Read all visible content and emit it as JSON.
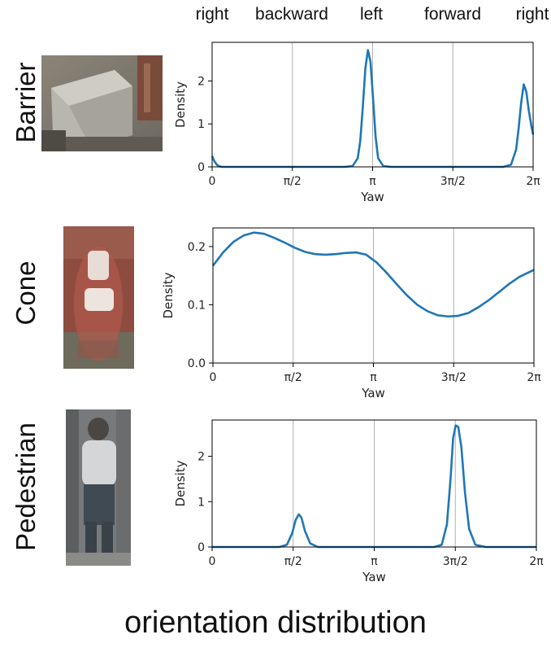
{
  "directions": [
    "right",
    "backward",
    "left",
    "forward",
    "right"
  ],
  "caption": "orientation distribution",
  "colors": {
    "curve": "#1f77b4",
    "grid": "#b0b0b0",
    "axis": "#000000"
  },
  "thumbnails": [
    "barrier-photo",
    "cone-photo",
    "pedestrian-photo"
  ],
  "chart_data": [
    {
      "type": "line",
      "row_label": "Barrier",
      "xlabel": "Yaw",
      "ylabel": "Density",
      "xlim": [
        0,
        6.2832
      ],
      "ylim": [
        0,
        2.9
      ],
      "xticks": [
        0,
        1.5708,
        3.1416,
        4.7124,
        6.2832
      ],
      "xtick_labels": [
        "0",
        "π/2",
        "π",
        "3π/2",
        "2π"
      ],
      "yticks": [
        0,
        1,
        2
      ],
      "ytick_labels": [
        "0",
        "1",
        "2"
      ],
      "grid": "vertical",
      "series": [
        {
          "x": [
            0,
            0.05,
            0.1,
            0.15,
            0.2,
            2.6,
            2.75,
            2.85,
            2.9,
            2.95,
            3.0,
            3.05,
            3.1,
            3.15,
            3.2,
            3.25,
            3.35,
            3.5,
            5.7,
            5.85,
            5.95,
            6.0,
            6.05,
            6.1,
            6.15,
            6.2,
            6.25,
            6.2832
          ],
          "y": [
            0.25,
            0.12,
            0.04,
            0.01,
            0,
            0,
            0.02,
            0.2,
            0.6,
            1.4,
            2.3,
            2.72,
            2.45,
            1.6,
            0.7,
            0.2,
            0.02,
            0,
            0,
            0.05,
            0.4,
            0.9,
            1.5,
            1.92,
            1.75,
            1.3,
            0.95,
            0.75
          ]
        }
      ]
    },
    {
      "type": "line",
      "row_label": "Cone",
      "xlabel": "Yaw",
      "ylabel": "Density",
      "xlim": [
        0,
        6.2832
      ],
      "ylim": [
        0,
        0.232
      ],
      "xticks": [
        0,
        1.5708,
        3.1416,
        4.7124,
        6.2832
      ],
      "xtick_labels": [
        "0",
        "π/2",
        "π",
        "3π/2",
        "2π"
      ],
      "yticks": [
        0,
        0.1,
        0.2
      ],
      "ytick_labels": [
        "0.0",
        "0.1",
        "0.2"
      ],
      "grid": "vertical",
      "series": [
        {
          "x": [
            0,
            0.2,
            0.4,
            0.6,
            0.8,
            1.0,
            1.2,
            1.4,
            1.6,
            1.8,
            2.0,
            2.2,
            2.4,
            2.6,
            2.8,
            3.0,
            3.2,
            3.4,
            3.6,
            3.8,
            4.0,
            4.2,
            4.4,
            4.6,
            4.8,
            5.0,
            5.2,
            5.4,
            5.6,
            5.8,
            6.0,
            6.2832
          ],
          "y": [
            0.167,
            0.19,
            0.208,
            0.219,
            0.224,
            0.222,
            0.215,
            0.207,
            0.198,
            0.191,
            0.187,
            0.186,
            0.187,
            0.189,
            0.19,
            0.186,
            0.173,
            0.155,
            0.135,
            0.116,
            0.1,
            0.089,
            0.082,
            0.08,
            0.081,
            0.086,
            0.096,
            0.108,
            0.122,
            0.136,
            0.148,
            0.16
          ]
        }
      ]
    },
    {
      "type": "line",
      "row_label": "Pedestrian",
      "xlabel": "Yaw",
      "ylabel": "Density",
      "xlim": [
        0,
        6.2832
      ],
      "ylim": [
        0,
        2.8
      ],
      "xticks": [
        0,
        1.5708,
        3.1416,
        4.7124,
        6.2832
      ],
      "xtick_labels": [
        "0",
        "π/2",
        "π",
        "3π/2",
        "2π"
      ],
      "yticks": [
        0,
        1,
        2
      ],
      "ytick_labels": [
        "0",
        "1",
        "2"
      ],
      "grid": "vertical",
      "series": [
        {
          "x": [
            0,
            1.3,
            1.45,
            1.55,
            1.62,
            1.68,
            1.73,
            1.8,
            1.9,
            2.05,
            4.3,
            4.45,
            4.55,
            4.62,
            4.67,
            4.72,
            4.77,
            4.83,
            4.9,
            4.98,
            5.1,
            5.3,
            6.2832
          ],
          "y": [
            0,
            0,
            0.05,
            0.3,
            0.6,
            0.72,
            0.65,
            0.35,
            0.08,
            0,
            0,
            0.05,
            0.5,
            1.5,
            2.4,
            2.68,
            2.65,
            2.2,
            1.2,
            0.4,
            0.05,
            0,
            0
          ]
        }
      ]
    }
  ]
}
